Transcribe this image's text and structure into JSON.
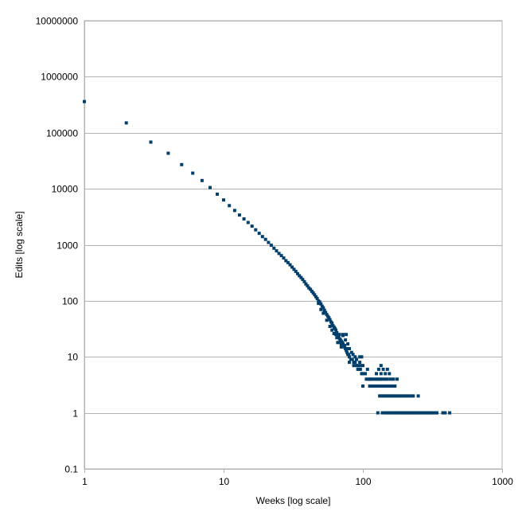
{
  "chart_data": {
    "type": "scatter",
    "title": "",
    "xlabel": "Weeks [log scale]",
    "ylabel": "Edits [log scale]",
    "x_scale": "log",
    "y_scale": "log",
    "xlim": [
      1,
      1000
    ],
    "ylim": [
      0.1,
      10000000
    ],
    "grid": {
      "horizontal": true,
      "vertical": false
    },
    "legend": "none",
    "marker_color": "#003f6b",
    "x_ticks": [
      "1",
      "10",
      "100",
      "1000"
    ],
    "y_ticks": [
      "0.1",
      "1",
      "10",
      "100",
      "1000",
      "10000",
      "100000",
      "1000000",
      "10000000"
    ],
    "points": [
      [
        1,
        360000
      ],
      [
        2,
        150000
      ],
      [
        3,
        68000
      ],
      [
        4,
        43000
      ],
      [
        5,
        27000
      ],
      [
        6,
        19000
      ],
      [
        7,
        14000
      ],
      [
        8,
        10500
      ],
      [
        9,
        8000
      ],
      [
        10,
        6300
      ],
      [
        11,
        5000
      ],
      [
        12,
        4100
      ],
      [
        13,
        3400
      ],
      [
        14,
        2900
      ],
      [
        15,
        2500
      ],
      [
        16,
        2150
      ],
      [
        17,
        1850
      ],
      [
        18,
        1600
      ],
      [
        19,
        1400
      ],
      [
        20,
        1250
      ],
      [
        21,
        1100
      ],
      [
        22,
        980
      ],
      [
        23,
        870
      ],
      [
        24,
        780
      ],
      [
        25,
        700
      ],
      [
        26,
        640
      ],
      [
        27,
        580
      ],
      [
        28,
        520
      ],
      [
        29,
        480
      ],
      [
        30,
        440
      ],
      [
        31,
        400
      ],
      [
        32,
        365
      ],
      [
        33,
        335
      ],
      [
        34,
        305
      ],
      [
        35,
        280
      ],
      [
        36,
        260
      ],
      [
        37,
        240
      ],
      [
        38,
        220
      ],
      [
        39,
        200
      ],
      [
        40,
        185
      ],
      [
        41,
        170
      ],
      [
        42,
        160
      ],
      [
        43,
        148
      ],
      [
        44,
        138
      ],
      [
        45,
        128
      ],
      [
        46,
        118
      ],
      [
        47,
        110
      ],
      [
        48,
        100
      ],
      [
        49,
        95
      ],
      [
        50,
        88
      ],
      [
        51,
        80
      ],
      [
        52,
        75
      ],
      [
        53,
        68
      ],
      [
        54,
        62
      ],
      [
        55,
        57
      ],
      [
        56,
        53
      ],
      [
        57,
        50
      ],
      [
        58,
        46
      ],
      [
        59,
        42
      ],
      [
        60,
        40
      ],
      [
        61,
        36
      ],
      [
        62,
        34
      ],
      [
        63,
        32
      ],
      [
        64,
        30
      ],
      [
        65,
        27
      ],
      [
        66,
        25
      ],
      [
        67,
        23
      ],
      [
        68,
        21
      ],
      [
        69,
        20
      ],
      [
        70,
        19
      ],
      [
        71,
        18
      ],
      [
        72,
        17
      ],
      [
        73,
        16
      ],
      [
        74,
        15
      ],
      [
        75,
        14
      ],
      [
        76,
        13
      ],
      [
        77,
        12
      ],
      [
        78,
        11
      ],
      [
        79,
        11
      ],
      [
        80,
        10
      ],
      [
        82,
        9
      ],
      [
        84,
        9
      ],
      [
        86,
        8
      ],
      [
        88,
        8
      ],
      [
        90,
        7
      ],
      [
        92,
        7
      ],
      [
        94,
        6
      ],
      [
        96,
        6
      ],
      [
        98,
        5
      ],
      [
        100,
        5
      ],
      [
        48,
        90
      ],
      [
        50,
        70
      ],
      [
        52,
        60
      ],
      [
        55,
        45
      ],
      [
        58,
        35
      ],
      [
        60,
        30
      ],
      [
        62,
        26
      ],
      [
        65,
        22
      ],
      [
        68,
        18
      ],
      [
        70,
        15
      ],
      [
        72,
        24
      ],
      [
        75,
        20
      ],
      [
        78,
        17
      ],
      [
        80,
        14
      ],
      [
        83,
        12
      ],
      [
        85,
        11
      ],
      [
        88,
        10
      ],
      [
        90,
        9
      ],
      [
        95,
        8
      ],
      [
        98,
        10
      ],
      [
        64,
        25
      ],
      [
        68,
        25
      ],
      [
        72,
        25
      ],
      [
        76,
        25
      ],
      [
        70,
        16
      ],
      [
        74,
        16
      ],
      [
        78,
        14
      ],
      [
        66,
        18
      ],
      [
        80,
        8
      ],
      [
        86,
        7
      ],
      [
        92,
        6
      ],
      [
        96,
        7
      ],
      [
        100,
        7
      ],
      [
        104,
        5
      ],
      [
        106,
        4
      ],
      [
        108,
        6
      ],
      [
        112,
        4
      ],
      [
        100,
        3
      ],
      [
        95,
        10
      ],
      [
        112,
        3
      ],
      [
        116,
        3
      ],
      [
        120,
        3
      ],
      [
        124,
        3
      ],
      [
        128,
        3
      ],
      [
        132,
        3
      ],
      [
        136,
        3
      ],
      [
        140,
        3
      ],
      [
        146,
        3
      ],
      [
        150,
        3
      ],
      [
        156,
        3
      ],
      [
        162,
        3
      ],
      [
        170,
        3
      ],
      [
        110,
        4
      ],
      [
        114,
        4
      ],
      [
        118,
        4
      ],
      [
        122,
        4
      ],
      [
        126,
        4
      ],
      [
        130,
        4
      ],
      [
        134,
        4
      ],
      [
        138,
        4
      ],
      [
        144,
        4
      ],
      [
        150,
        4
      ],
      [
        158,
        4
      ],
      [
        166,
        4
      ],
      [
        176,
        4
      ],
      [
        125,
        5
      ],
      [
        135,
        5
      ],
      [
        145,
        5
      ],
      [
        155,
        5
      ],
      [
        150,
        6
      ],
      [
        140,
        6
      ],
      [
        130,
        6
      ],
      [
        135,
        7
      ],
      [
        132,
        2
      ],
      [
        136,
        2
      ],
      [
        140,
        2
      ],
      [
        144,
        2
      ],
      [
        148,
        2
      ],
      [
        152,
        2
      ],
      [
        156,
        2
      ],
      [
        160,
        2
      ],
      [
        165,
        2
      ],
      [
        170,
        2
      ],
      [
        175,
        2
      ],
      [
        180,
        2
      ],
      [
        185,
        2
      ],
      [
        190,
        2
      ],
      [
        196,
        2
      ],
      [
        202,
        2
      ],
      [
        208,
        2
      ],
      [
        215,
        2
      ],
      [
        222,
        2
      ],
      [
        230,
        2
      ],
      [
        250,
        2
      ],
      [
        128,
        1
      ],
      [
        138,
        1
      ],
      [
        145,
        1
      ],
      [
        150,
        1
      ],
      [
        155,
        1
      ],
      [
        160,
        1
      ],
      [
        165,
        1
      ],
      [
        170,
        1
      ],
      [
        175,
        1
      ],
      [
        180,
        1
      ],
      [
        185,
        1
      ],
      [
        190,
        1
      ],
      [
        195,
        1
      ],
      [
        200,
        1
      ],
      [
        206,
        1
      ],
      [
        212,
        1
      ],
      [
        218,
        1
      ],
      [
        224,
        1
      ],
      [
        230,
        1
      ],
      [
        236,
        1
      ],
      [
        242,
        1
      ],
      [
        248,
        1
      ],
      [
        255,
        1
      ],
      [
        262,
        1
      ],
      [
        270,
        1
      ],
      [
        278,
        1
      ],
      [
        286,
        1
      ],
      [
        294,
        1
      ],
      [
        302,
        1
      ],
      [
        310,
        1
      ],
      [
        320,
        1
      ],
      [
        330,
        1
      ],
      [
        340,
        1
      ],
      [
        375,
        1
      ],
      [
        390,
        1
      ],
      [
        420,
        1
      ]
    ]
  }
}
